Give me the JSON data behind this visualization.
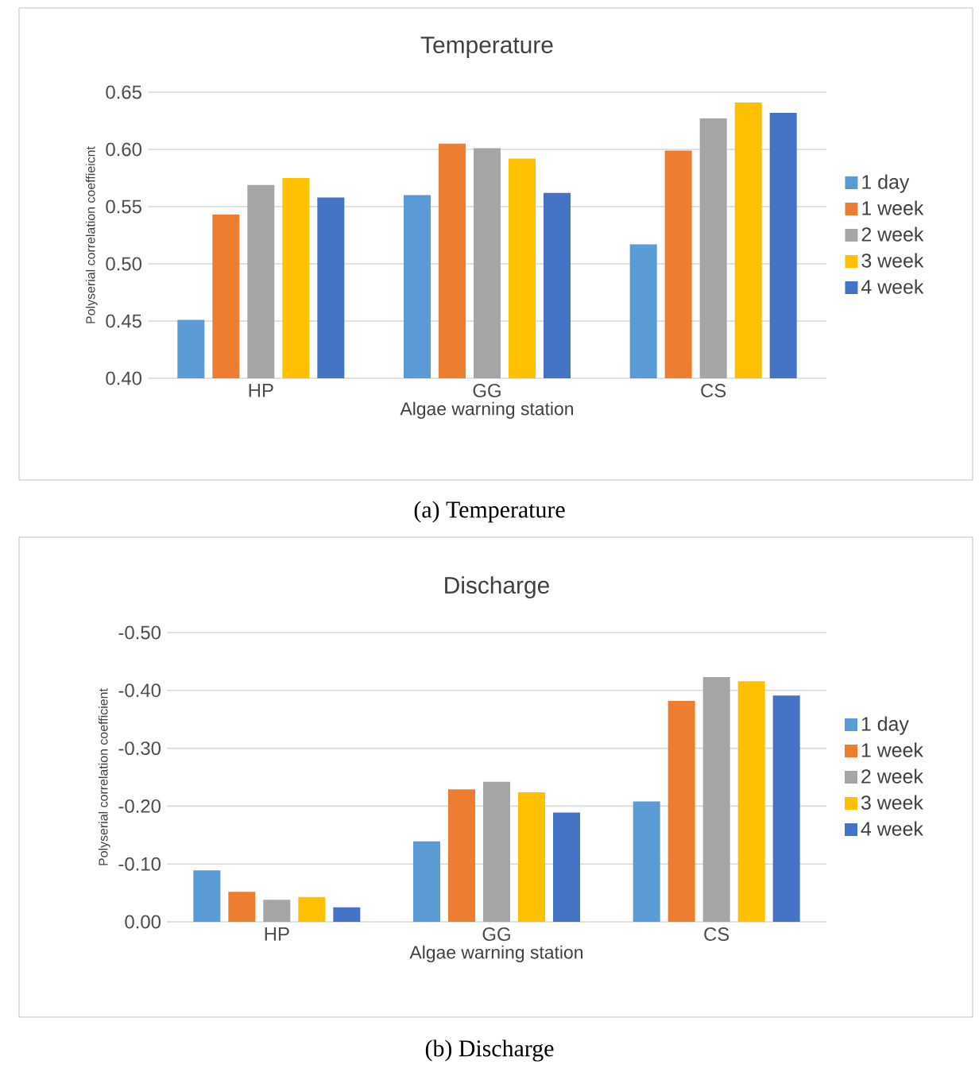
{
  "chart_data": [
    {
      "type": "bar",
      "title": "Temperature",
      "xlabel": "Algae warning station",
      "ylabel": "Polyserial correlation coeffieicnt",
      "categories": [
        "HP",
        "GG",
        "CS"
      ],
      "series": [
        {
          "name": "1 day",
          "color": "#5b9bd5",
          "values": [
            0.451,
            0.56,
            0.517
          ]
        },
        {
          "name": "1 week",
          "color": "#ed7d31",
          "values": [
            0.543,
            0.605,
            0.599
          ]
        },
        {
          "name": "2 week",
          "color": "#a5a5a5",
          "values": [
            0.569,
            0.601,
            0.627
          ]
        },
        {
          "name": "3 week",
          "color": "#ffc000",
          "values": [
            0.575,
            0.592,
            0.641
          ]
        },
        {
          "name": "4 week",
          "color": "#4472c4",
          "values": [
            0.558,
            0.562,
            0.632
          ]
        }
      ],
      "ylim": [
        0.4,
        0.65
      ],
      "yticks": [
        {
          "value": 0.4,
          "label": "0.40"
        },
        {
          "value": 0.45,
          "label": "0.45"
        },
        {
          "value": 0.5,
          "label": "0.50"
        },
        {
          "value": 0.55,
          "label": "0.55"
        },
        {
          "value": 0.6,
          "label": "0.60"
        },
        {
          "value": 0.65,
          "label": "0.65"
        }
      ],
      "grid": "y",
      "legend": "right",
      "annotations": [
        "(a)  Temperature"
      ]
    },
    {
      "type": "bar",
      "title": "Discharge",
      "xlabel": "Algae warning station",
      "ylabel": "Polyserial correlation coefficient",
      "categories": [
        "HP",
        "GG",
        "CS"
      ],
      "series": [
        {
          "name": "1 day",
          "color": "#5b9bd5",
          "values": [
            -0.089,
            -0.139,
            -0.208
          ]
        },
        {
          "name": "1 week",
          "color": "#ed7d31",
          "values": [
            -0.052,
            -0.229,
            -0.382
          ]
        },
        {
          "name": "2 week",
          "color": "#a5a5a5",
          "values": [
            -0.038,
            -0.242,
            -0.423
          ]
        },
        {
          "name": "3 week",
          "color": "#ffc000",
          "values": [
            -0.043,
            -0.224,
            -0.416
          ]
        },
        {
          "name": "4 week",
          "color": "#4472c4",
          "values": [
            -0.025,
            -0.189,
            -0.391
          ]
        }
      ],
      "ylim": [
        0,
        -0.5
      ],
      "yticks": [
        {
          "value": 0,
          "label": "0.00"
        },
        {
          "value": -0.1,
          "label": "-0.10"
        },
        {
          "value": -0.2,
          "label": "-0.20"
        },
        {
          "value": -0.3,
          "label": "-0.30"
        },
        {
          "value": -0.4,
          "label": "-0.40"
        },
        {
          "value": -0.5,
          "label": "-0.50"
        }
      ],
      "grid": "y",
      "legend": "right",
      "annotations": [
        "(b)  Discharge"
      ]
    }
  ]
}
